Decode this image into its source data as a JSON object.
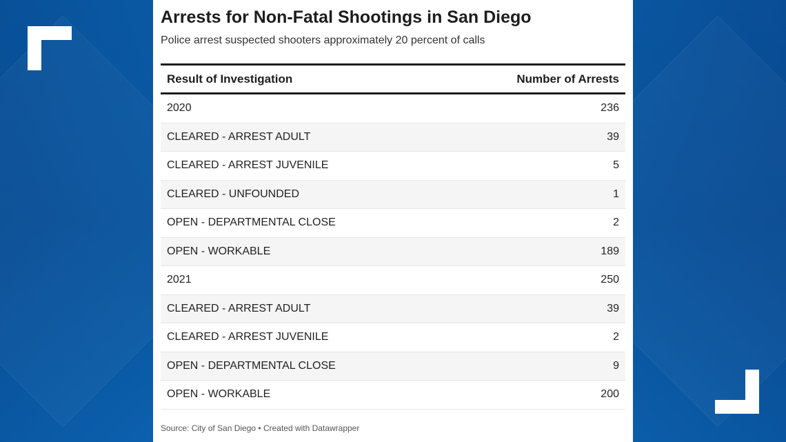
{
  "chart_data": {
    "type": "table",
    "title": "Arrests for Non-Fatal Shootings in San Diego",
    "subtitle": "Police arrest suspected shooters approximately 20 percent of calls",
    "columns": [
      "Result of Investigation",
      "Number of Arrests"
    ],
    "rows": [
      {
        "label": "2020",
        "value": "236"
      },
      {
        "label": "CLEARED - ARREST ADULT",
        "value": "39"
      },
      {
        "label": "CLEARED - ARREST JUVENILE",
        "value": "5"
      },
      {
        "label": "CLEARED - UNFOUNDED",
        "value": "1"
      },
      {
        "label": "OPEN - DEPARTMENTAL CLOSE",
        "value": "2"
      },
      {
        "label": "OPEN - WORKABLE",
        "value": "189"
      },
      {
        "label": "2021",
        "value": "250"
      },
      {
        "label": "CLEARED - ARREST ADULT",
        "value": "39"
      },
      {
        "label": "CLEARED - ARREST JUVENILE",
        "value": "2"
      },
      {
        "label": "OPEN - DEPARTMENTAL CLOSE",
        "value": "9"
      },
      {
        "label": "OPEN - WORKABLE",
        "value": "200"
      }
    ],
    "source": "Source: City of San Diego • Created with Datawrapper"
  },
  "colors": {
    "background": "#0b5ea8",
    "card": "#ffffff",
    "text": "#1d1d1d",
    "alt_row": "#f5f5f5"
  }
}
